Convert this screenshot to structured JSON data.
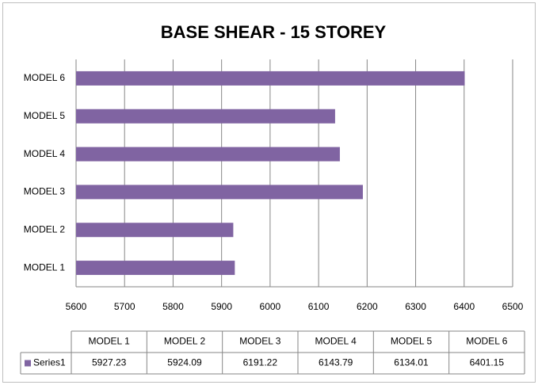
{
  "chart_data": {
    "type": "bar",
    "orientation": "horizontal",
    "title": "BASE SHEAR - 15 STOREY",
    "categories": [
      "MODEL 1",
      "MODEL 2",
      "MODEL 3",
      "MODEL 4",
      "MODEL 5",
      "MODEL 6"
    ],
    "series": [
      {
        "name": "Series1",
        "color": "#8064a2",
        "values": [
          5927.23,
          5924.09,
          6191.22,
          6143.79,
          6134.01,
          6401.15
        ]
      }
    ],
    "xlim": [
      5600,
      6500
    ],
    "xticks": [
      5600,
      5700,
      5800,
      5900,
      6000,
      6100,
      6200,
      6300,
      6400,
      6500
    ],
    "grid": true,
    "data_table": true
  }
}
